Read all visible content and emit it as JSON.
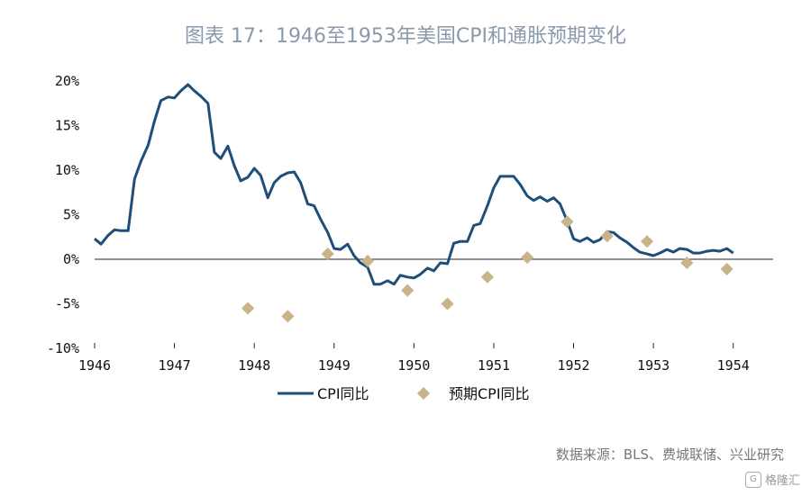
{
  "chart_data": {
    "type": "line",
    "title": "图表 17：1946至1953年美国CPI和通胀预期变化",
    "source": "数据来源：BLS、费城联储、兴业研究",
    "watermark": "格隆汇",
    "xlim": [
      1946,
      1954.5
    ],
    "ylim": [
      -10,
      20
    ],
    "x_ticks": [
      "1946",
      "1947",
      "1948",
      "1949",
      "1950",
      "1951",
      "1952",
      "1953",
      "1954"
    ],
    "y_ticks": [
      "20%",
      "15%",
      "10%",
      "5%",
      "0%",
      "-5%",
      "-10%"
    ],
    "grid": false,
    "legend_position": "bottom-center",
    "series": [
      {
        "name": "CPI同比",
        "color": "#1f4e79",
        "style": "line",
        "x": [
          1946.0,
          1946.08,
          1946.17,
          1946.25,
          1946.33,
          1946.42,
          1946.5,
          1946.58,
          1946.67,
          1946.75,
          1946.83,
          1946.92,
          1947.0,
          1947.08,
          1947.17,
          1947.25,
          1947.33,
          1947.42,
          1947.5,
          1947.58,
          1947.67,
          1947.75,
          1947.83,
          1947.92,
          1948.0,
          1948.08,
          1948.17,
          1948.25,
          1948.33,
          1948.42,
          1948.5,
          1948.58,
          1948.67,
          1948.75,
          1948.83,
          1948.92,
          1949.0,
          1949.08,
          1949.17,
          1949.25,
          1949.33,
          1949.42,
          1949.5,
          1949.58,
          1949.67,
          1949.75,
          1949.83,
          1949.92,
          1950.0,
          1950.08,
          1950.17,
          1950.25,
          1950.33,
          1950.42,
          1950.5,
          1950.58,
          1950.67,
          1950.75,
          1950.83,
          1950.92,
          1951.0,
          1951.08,
          1951.17,
          1951.25,
          1951.33,
          1951.42,
          1951.5,
          1951.58,
          1951.67,
          1951.75,
          1951.83,
          1951.92,
          1952.0,
          1952.08,
          1952.17,
          1952.25,
          1952.33,
          1952.42,
          1952.5,
          1952.58,
          1952.67,
          1952.75,
          1952.83,
          1952.92,
          1953.0,
          1953.08,
          1953.17,
          1953.25,
          1953.33,
          1953.42,
          1953.5,
          1953.58,
          1953.67,
          1953.75,
          1953.83,
          1953.92,
          1954.0
        ],
        "values": [
          2.3,
          1.7,
          2.7,
          3.3,
          3.2,
          3.2,
          9.0,
          11.0,
          12.8,
          15.5,
          17.8,
          18.2,
          18.1,
          18.9,
          19.6,
          18.9,
          18.3,
          17.5,
          12.0,
          11.3,
          12.7,
          10.5,
          8.8,
          9.2,
          10.2,
          9.4,
          6.9,
          8.6,
          9.3,
          9.7,
          9.8,
          8.6,
          6.2,
          6.0,
          4.5,
          3.0,
          1.2,
          1.1,
          1.7,
          0.4,
          -0.4,
          -0.9,
          -2.8,
          -2.8,
          -2.4,
          -2.8,
          -1.8,
          -2.0,
          -2.1,
          -1.7,
          -1.0,
          -1.3,
          -0.4,
          -0.5,
          1.8,
          2.0,
          2.0,
          3.8,
          4.0,
          6.0,
          8.0,
          9.3,
          9.3,
          9.3,
          8.4,
          7.1,
          6.6,
          7.0,
          6.5,
          6.9,
          6.2,
          4.3,
          2.3,
          2.0,
          2.4,
          1.9,
          2.2,
          3.1,
          3.0,
          2.4,
          1.9,
          1.3,
          0.8,
          0.6,
          0.4,
          0.7,
          1.1,
          0.8,
          1.2,
          1.1,
          0.7,
          0.7,
          0.9,
          1.0,
          0.9,
          1.2,
          0.7
        ]
      },
      {
        "name": "预期CPI同比",
        "color": "#c9b48a",
        "style": "marker",
        "x": [
          1947.92,
          1948.42,
          1948.92,
          1949.42,
          1949.92,
          1950.42,
          1950.92,
          1951.42,
          1951.92,
          1952.42,
          1952.92,
          1953.42,
          1953.92
        ],
        "values": [
          -5.5,
          -6.4,
          0.6,
          -0.2,
          -3.5,
          -5.0,
          -2.0,
          0.2,
          4.2,
          2.6,
          2.0,
          -0.4,
          -1.1
        ]
      }
    ]
  }
}
